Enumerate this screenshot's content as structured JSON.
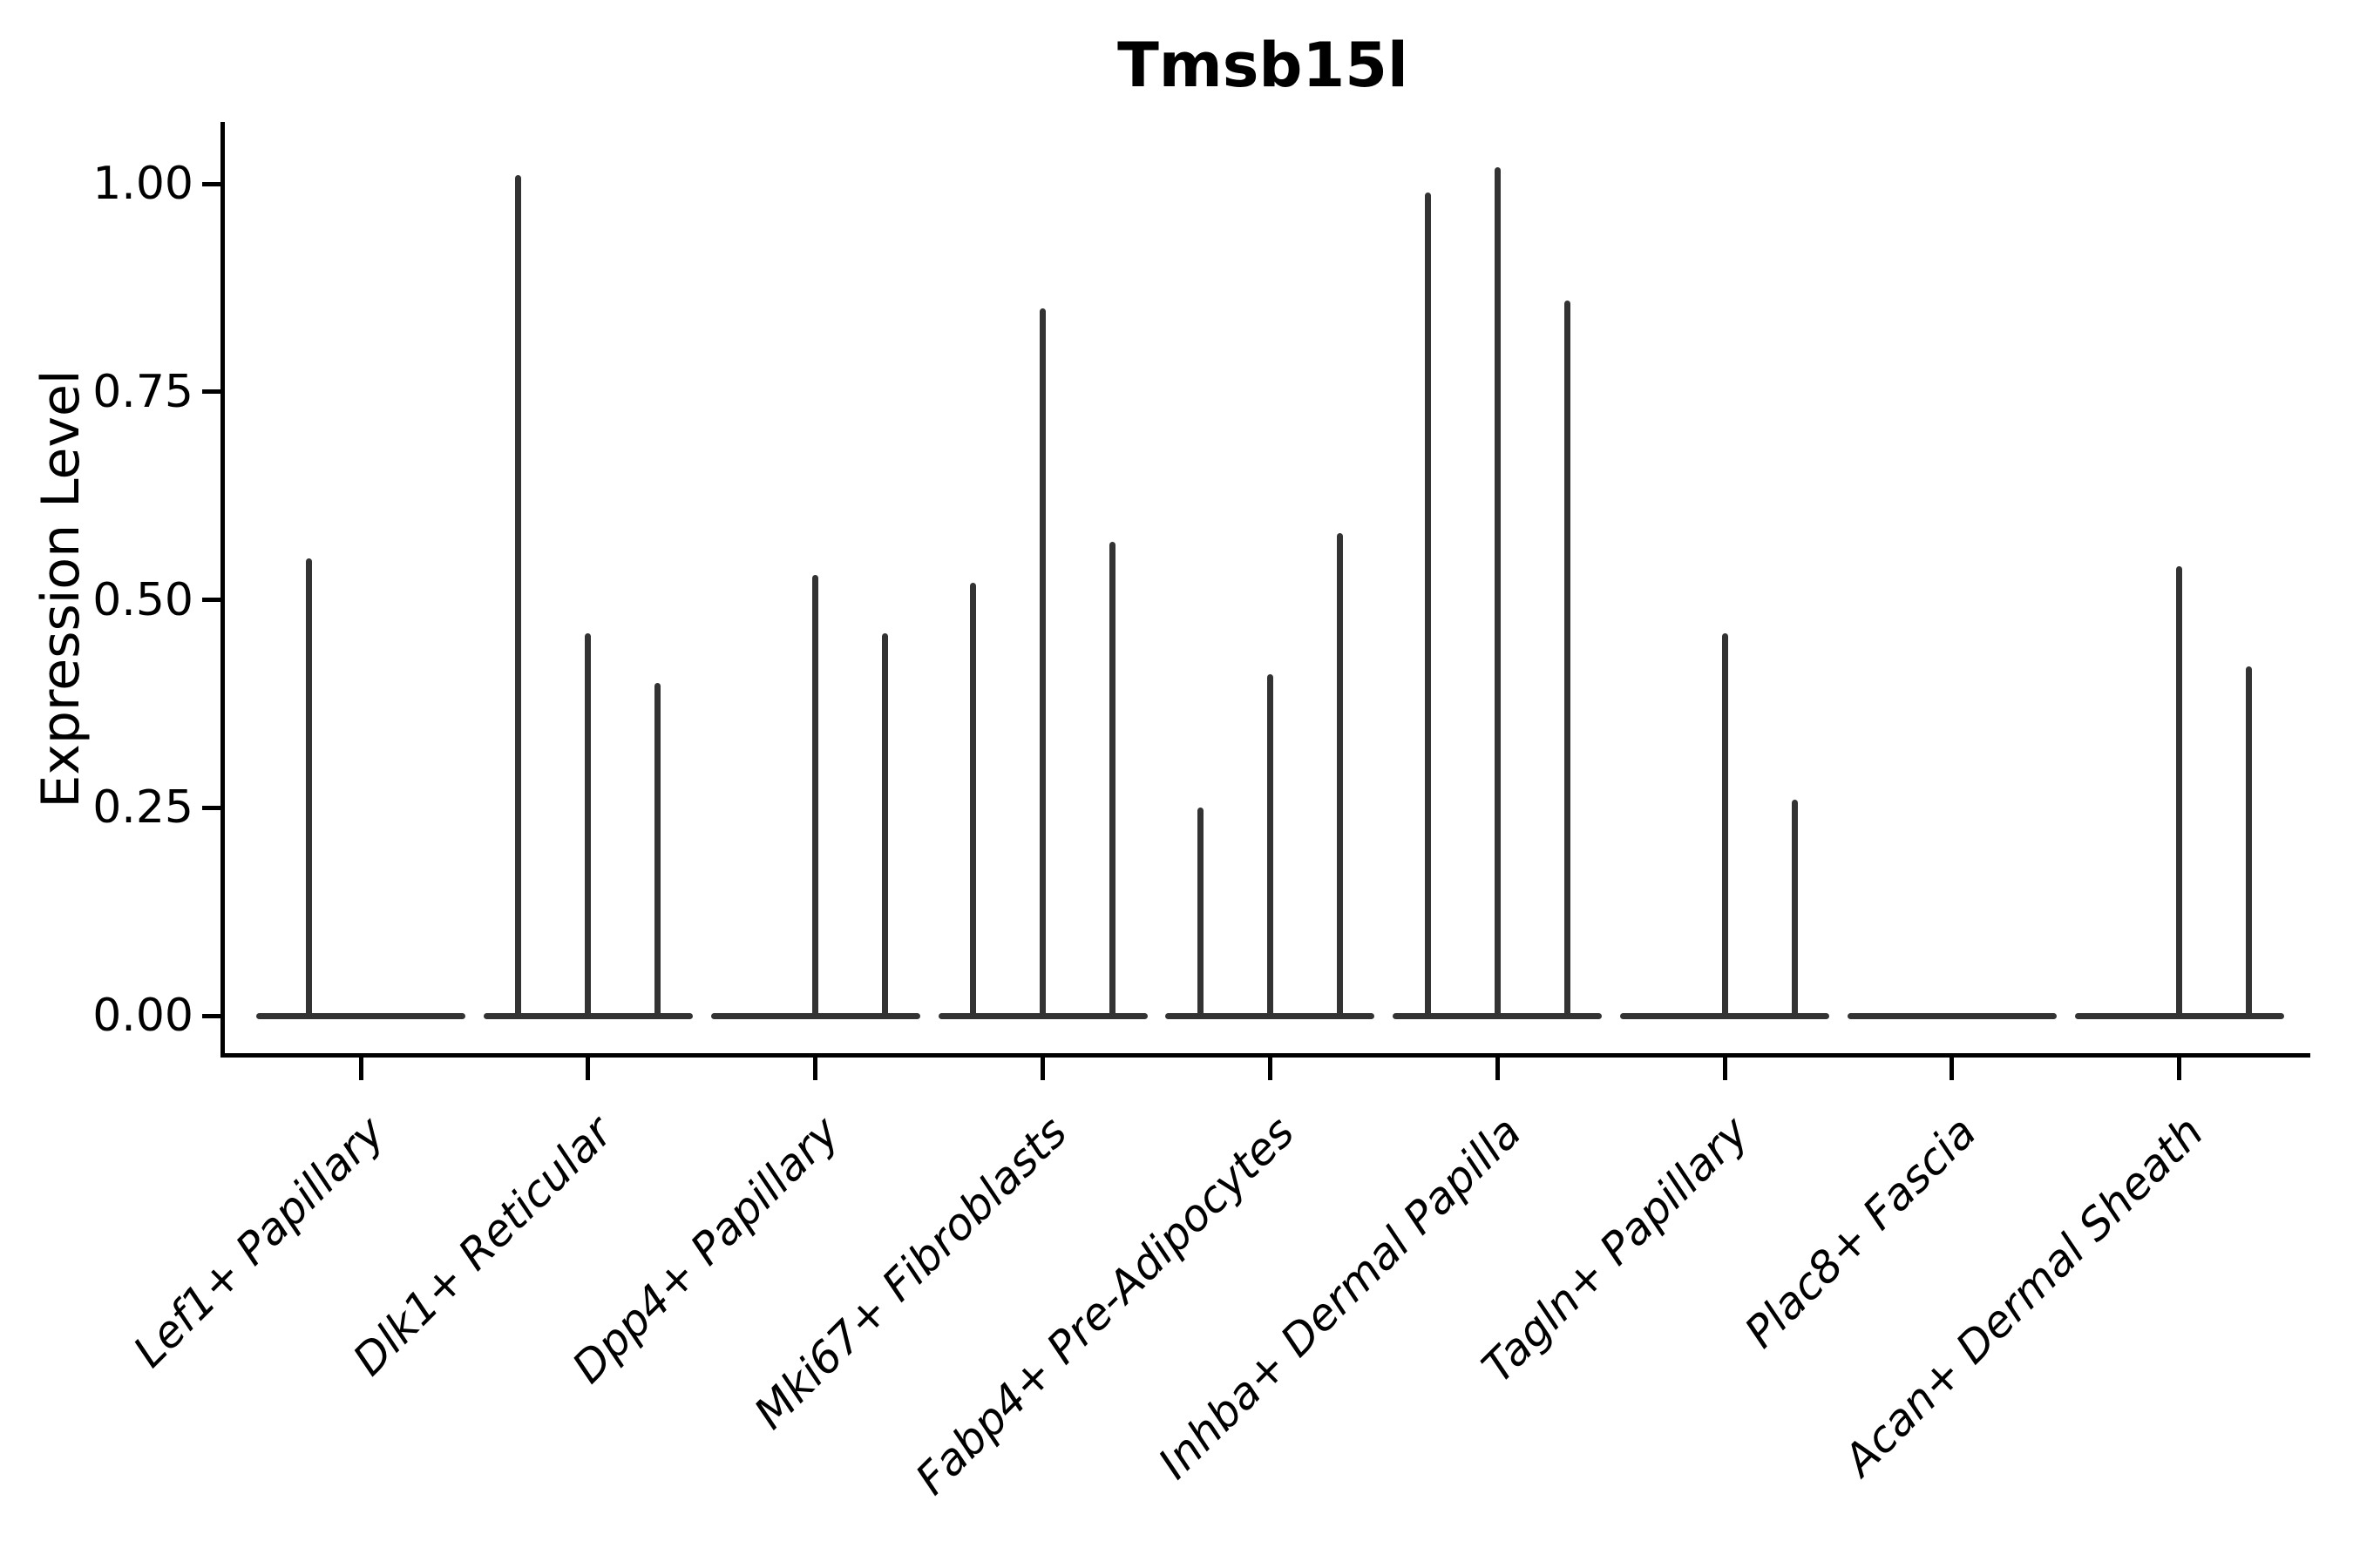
{
  "title": "Tmsb15l",
  "y_axis": {
    "label": "Expression Level",
    "tick_labels": [
      "1.00",
      "0.75",
      "0.50",
      "0.25",
      "0.00"
    ],
    "tick_values": [
      1.0,
      0.75,
      0.5,
      0.25,
      0.0
    ]
  },
  "x_axis": {
    "categories": [
      "Lef1+ Papillary",
      "Dlk1+ Reticular",
      "Dpp4+ Papillary",
      "Mki67+ Fibroblasts",
      "Fabp4+ Pre-Adipocytes",
      "Inhba+ Dermal Papilla",
      "Tagln+ Papillary",
      "Plac8+ Fascia",
      "Acan+ Dermal Sheath"
    ]
  },
  "colors": {
    "violin": "#333333",
    "axis": "#000000",
    "text": "#000000",
    "background": "#ffffff"
  },
  "chart_data": {
    "type": "violin",
    "title": "Tmsb15l",
    "xlabel": "",
    "ylabel": "Expression Level",
    "ylim": [
      0,
      1.08
    ],
    "yticks": [
      0,
      0.25,
      0.5,
      0.75,
      1.0
    ],
    "grid": false,
    "legend": false,
    "description": "Violin plot of Tmsb15l expression; each cell-type category holds grouped violins (most cells at 0, producing a flat base with a narrow spike up to the max expression). Zero entries are all-zero violins (flat base only).",
    "categories": [
      "Lef1+ Papillary",
      "Dlk1+ Reticular",
      "Dpp4+ Papillary",
      "Mki67+ Fibroblasts",
      "Fabp4+ Pre-Adipocytes",
      "Inhba+ Dermal Papilla",
      "Tagln+ Papillary",
      "Plac8+ Fascia",
      "Acan+ Dermal Sheath"
    ],
    "violins": [
      {
        "category": "Lef1+ Papillary",
        "group_max_expression": [
          0.55,
          0
        ]
      },
      {
        "category": "Dlk1+ Reticular",
        "group_max_expression": [
          1.01,
          0.46,
          0.4
        ]
      },
      {
        "category": "Dpp4+ Papillary",
        "group_max_expression": [
          0,
          0.53,
          0.46
        ]
      },
      {
        "category": "Mki67+ Fibroblasts",
        "group_max_expression": [
          0.52,
          0.85,
          0.57
        ]
      },
      {
        "category": "Fabp4+ Pre-Adipocytes",
        "group_max_expression": [
          0.25,
          0.41,
          0.58
        ]
      },
      {
        "category": "Inhba+ Dermal Papilla",
        "group_max_expression": [
          0.99,
          1.02,
          0.86
        ]
      },
      {
        "category": "Tagln+ Papillary",
        "group_max_expression": [
          0,
          0.46,
          0.26
        ]
      },
      {
        "category": "Plac8+ Fascia",
        "group_max_expression": [
          0,
          0,
          0
        ]
      },
      {
        "category": "Acan+ Dermal Sheath",
        "group_max_expression": [
          0,
          0.54,
          0.42
        ]
      }
    ]
  }
}
